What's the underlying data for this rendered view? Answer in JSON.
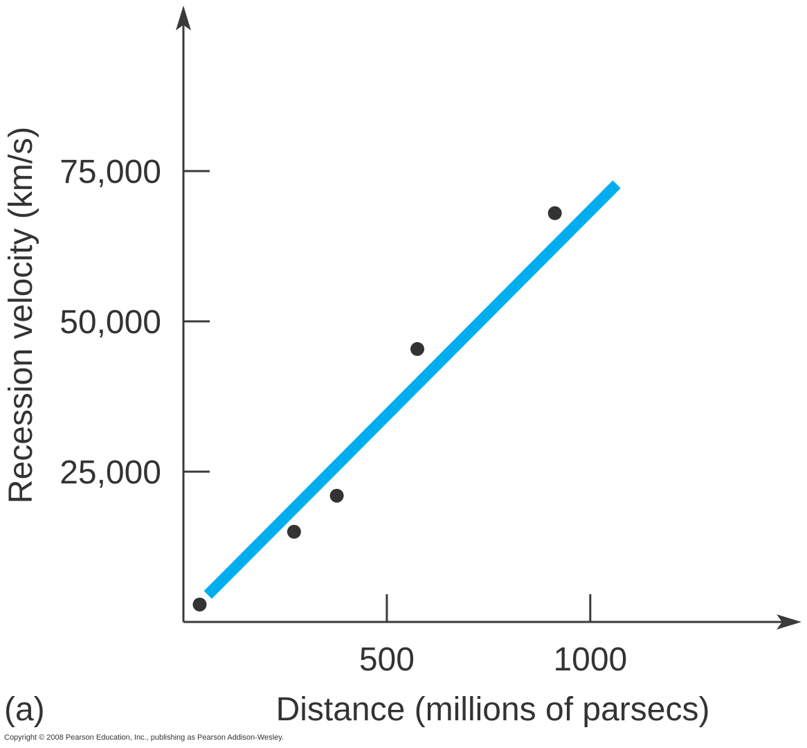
{
  "chart_data": {
    "type": "scatter",
    "xlabel": "Distance (millions of parsecs)",
    "ylabel": "Recession velocity (km/s)",
    "x_ticks": [
      500,
      1000
    ],
    "x_tick_labels": [
      "500",
      "1000"
    ],
    "y_ticks": [
      25000,
      50000,
      75000
    ],
    "y_tick_labels": [
      "25,000",
      "50,000",
      "75,000"
    ],
    "xlim": [
      0,
      1480
    ],
    "ylim": [
      0,
      100000
    ],
    "grid": false,
    "points": [
      {
        "x": 40,
        "y": 2900
      },
      {
        "x": 272,
        "y": 15000
      },
      {
        "x": 377,
        "y": 21000
      },
      {
        "x": 575,
        "y": 45400
      },
      {
        "x": 913,
        "y": 68000
      }
    ],
    "fit_line": {
      "x": [
        60,
        1065
      ],
      "y": [
        4500,
        72800
      ],
      "color": "#00aeef"
    },
    "marker_color": "#333333",
    "panel_label": "(a)"
  },
  "copyright": "Copyright © 2008 Pearson Education, Inc., publishing as Pearson Addison-Wesley."
}
